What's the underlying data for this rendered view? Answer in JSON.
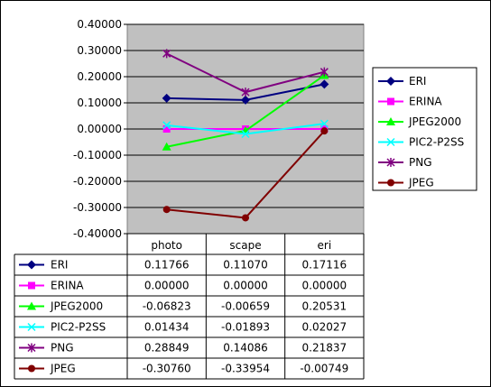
{
  "chart_data": {
    "type": "line",
    "title": "",
    "xlabel": "",
    "ylabel": "",
    "categories": [
      "photo",
      "scape",
      "eri"
    ],
    "ylim": [
      -0.4,
      0.4
    ],
    "yticks": [
      "0.40000",
      "0.30000",
      "0.20000",
      "0.10000",
      "0.00000",
      "-0.10000",
      "-0.20000",
      "-0.30000",
      "-0.40000"
    ],
    "yvalues": [
      0.4,
      0.3,
      0.2,
      0.1,
      0,
      -0.1,
      -0.2,
      -0.3,
      -0.4
    ],
    "grid": true,
    "legend": "right",
    "series": [
      {
        "name": "ERI",
        "color": "#000080",
        "marker": "diamond",
        "values": [
          0.11766,
          0.1107,
          0.17116
        ],
        "labels": [
          "0.11766",
          "0.11070",
          "0.17116"
        ]
      },
      {
        "name": "ERINA",
        "color": "#FF00FF",
        "marker": "square",
        "values": [
          0.0,
          0.0,
          0.0
        ],
        "labels": [
          "0.00000",
          "0.00000",
          "0.00000"
        ]
      },
      {
        "name": "JPEG2000",
        "color": "#00FF00",
        "marker": "triangle",
        "values": [
          -0.06823,
          -0.00659,
          0.20531
        ],
        "labels": [
          "-0.06823",
          "-0.00659",
          "0.20531"
        ]
      },
      {
        "name": "PIC2-P2SS",
        "color": "#00FFFF",
        "marker": "x",
        "values": [
          0.01434,
          -0.01893,
          0.02027
        ],
        "labels": [
          "0.01434",
          "-0.01893",
          "0.02027"
        ]
      },
      {
        "name": "PNG",
        "color": "#800080",
        "marker": "star",
        "values": [
          0.28849,
          0.14086,
          0.21837
        ],
        "labels": [
          "0.28849",
          "0.14086",
          "0.21837"
        ]
      },
      {
        "name": "JPEG",
        "color": "#800000",
        "marker": "circle",
        "values": [
          -0.3076,
          -0.33954,
          -0.00749
        ],
        "labels": [
          "-0.30760",
          "-0.33954",
          "-0.00749"
        ]
      }
    ],
    "colors": {
      "plot_background": "#C0C0C0",
      "gridline": "#000000"
    }
  }
}
